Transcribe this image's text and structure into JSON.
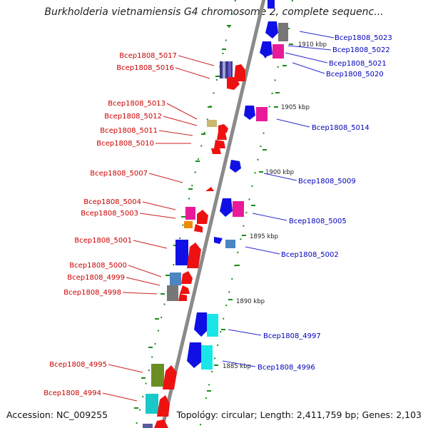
{
  "title": "Burkholderia vietnamiensis G4 chromosome 2, complete sequenc...",
  "footer": {
    "accession": "Accession: NC_009255",
    "topology": "Topology: circular; Length: 2,411,759 bp; Genes: 2,103"
  },
  "colors": {
    "left_labels": "#cc0000",
    "right_labels": "#0000bb",
    "backbone": "#8a8a8a",
    "tick": "#1a8a1a"
  },
  "kbp_marks": [
    "1910 kbp",
    "1905 kbp",
    "1900 kbp",
    "1895 kbp",
    "1890 kbp",
    "1885 kbp"
  ],
  "genes_left": [
    "Bcep1808_5017",
    "Bcep1808_5016",
    "Bcep1808_5013",
    "Bcep1808_5012",
    "Bcep1808_5011",
    "Bcep1808_5010",
    "Bcep1808_5007",
    "Bcep1808_5004",
    "Bcep1808_5003",
    "Bcep1808_5001",
    "Bcep1808_5000",
    "Bcep1808_4999",
    "Bcep1808_4998",
    "Bcep1808_4995",
    "Bcep1808_4994"
  ],
  "genes_right": [
    "Bcep1808_5023",
    "Bcep1808_5022",
    "Bcep1808_5021",
    "Bcep1808_5020",
    "Bcep1808_5014",
    "Bcep1808_5009",
    "Bcep1808_5005",
    "Bcep1808_5002",
    "Bcep1808_4997",
    "Bcep1808_4996"
  ]
}
